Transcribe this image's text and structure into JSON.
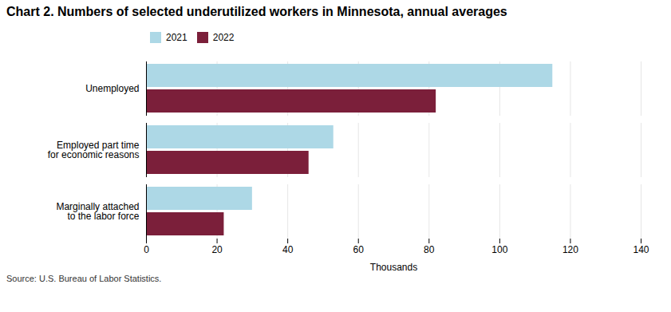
{
  "chart_data": {
    "type": "bar",
    "orientation": "horizontal",
    "title": "Chart 2. Numbers of selected underutilized workers in Minnesota, annual averages",
    "categories": [
      "Unemployed",
      "Employed part time\nfor economic reasons",
      "Marginally attached\nto the labor force"
    ],
    "series": [
      {
        "name": "2021",
        "color": "#add8e6",
        "values": [
          115,
          53,
          30
        ]
      },
      {
        "name": "2022",
        "color": "#7b1f3a",
        "values": [
          82,
          46,
          22
        ]
      }
    ],
    "xlabel": "Thousands",
    "xlim": [
      0,
      140
    ],
    "xticks": [
      0,
      20,
      40,
      60,
      80,
      100,
      120,
      140
    ],
    "grid": true,
    "legend": "top",
    "source": "Source: U.S. Bureau of Labor Statistics."
  }
}
